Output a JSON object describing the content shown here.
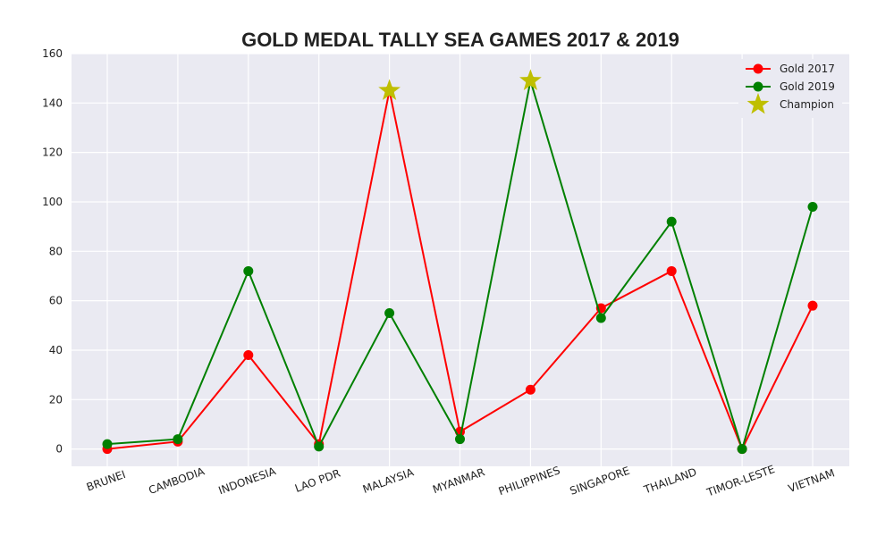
{
  "chart_data": {
    "type": "line",
    "title": "GOLD MEDAL TALLY SEA GAMES 2017 & 2019",
    "xlabel": "",
    "ylabel": "",
    "ylim": [
      -7,
      160
    ],
    "yticks": [
      0,
      20,
      40,
      60,
      80,
      100,
      120,
      140,
      160
    ],
    "grid": true,
    "legend_position": "top-right",
    "categories": [
      "BRUNEI",
      "CAMBODIA",
      "INDONESIA",
      "LAO PDR",
      "MALAYSIA",
      "MYANMAR",
      "PHILIPPINES",
      "SINGAPORE",
      "THAILAND",
      "TIMOR-LESTE",
      "VIETNAM"
    ],
    "series": [
      {
        "name": "Gold 2017",
        "color": "#ff0000",
        "values": [
          0,
          3,
          38,
          2,
          145,
          7,
          24,
          57,
          72,
          0,
          58
        ]
      },
      {
        "name": "Gold 2019",
        "color": "#008000",
        "values": [
          2,
          4,
          72,
          1,
          55,
          4,
          149,
          53,
          92,
          0,
          98
        ]
      }
    ],
    "champion": {
      "name": "Champion",
      "color": "#bfbf00",
      "points": [
        {
          "category": "MALAYSIA",
          "value": 145
        },
        {
          "category": "PHILIPPINES",
          "value": 149
        }
      ]
    }
  }
}
